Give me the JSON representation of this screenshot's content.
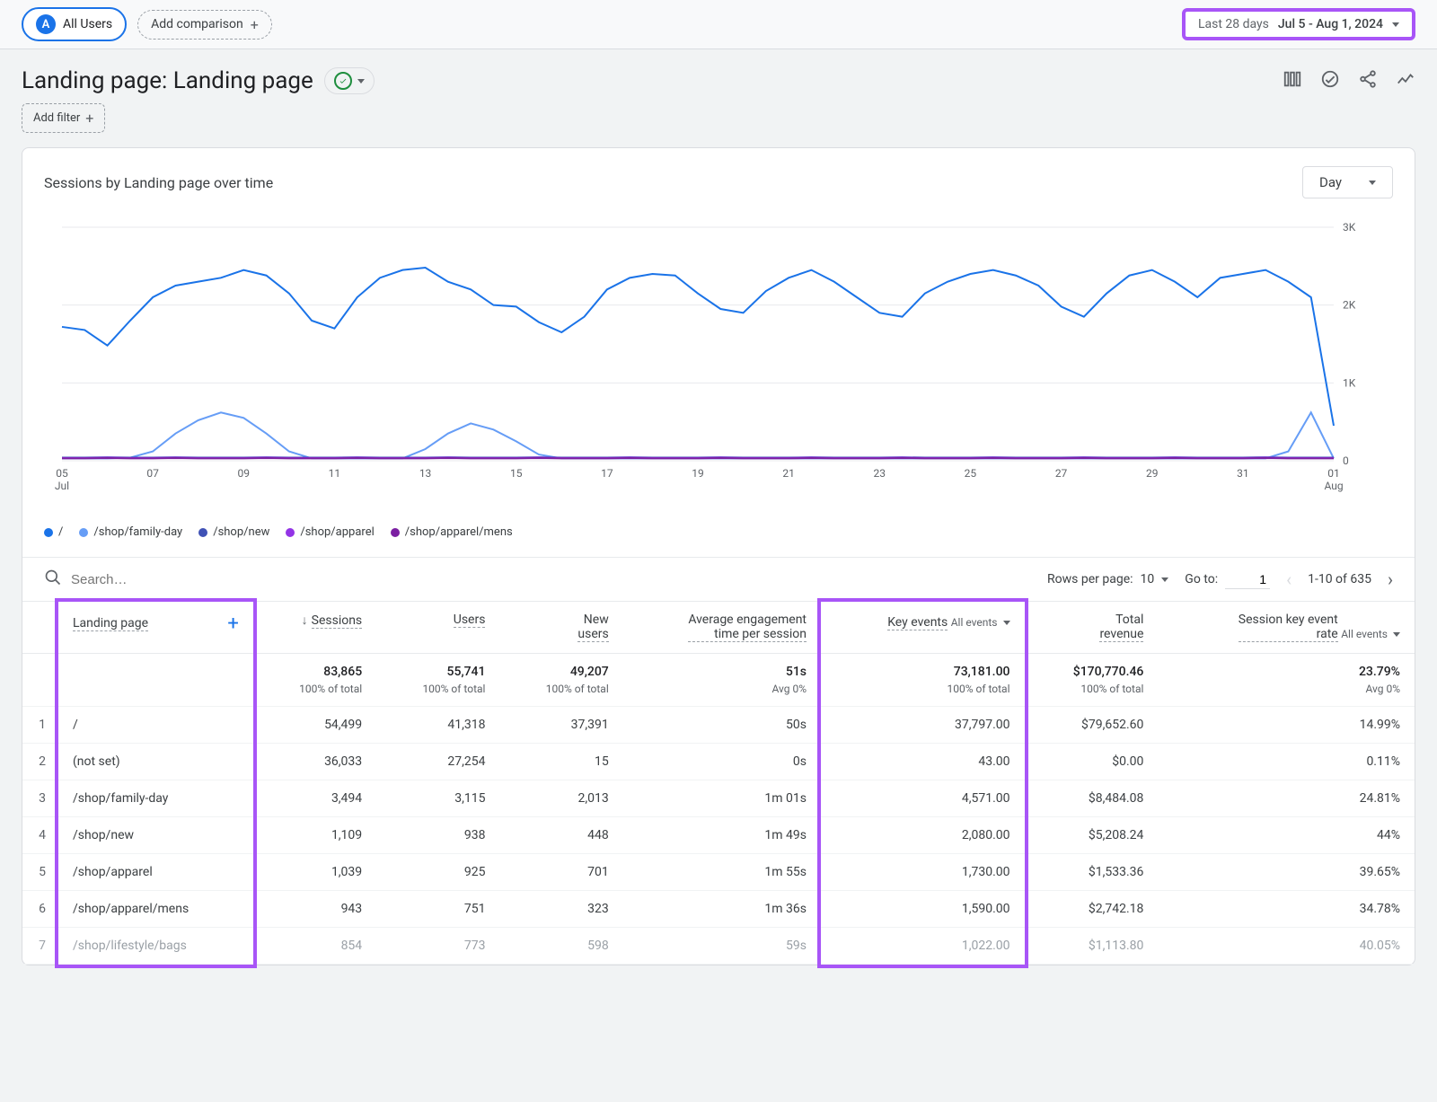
{
  "topbar": {
    "all_users_badge": "A",
    "all_users_label": "All Users",
    "add_comparison": "Add comparison"
  },
  "date_range": {
    "label": "Last 28 days",
    "value": "Jul 5 - Aug 1, 2024",
    "highlight_color": "#a855f7"
  },
  "header": {
    "title": "Landing page: Landing page",
    "add_filter": "Add filter"
  },
  "chart": {
    "title": "Sessions by Landing page over time",
    "granularity": "Day",
    "type": "line",
    "background_color": "#ffffff",
    "grid_color": "#e8eaed",
    "ylim": [
      0,
      3000
    ],
    "yticks": [
      0,
      1000,
      2000,
      3000
    ],
    "ytick_labels": [
      "0",
      "1K",
      "2K",
      "3K"
    ],
    "xtick_labels": [
      "05\nJul",
      "07",
      "09",
      "11",
      "13",
      "15",
      "17",
      "19",
      "21",
      "23",
      "25",
      "27",
      "29",
      "31",
      "01\nAug"
    ],
    "series": [
      {
        "name": "/",
        "color": "#1a73e8",
        "stroke_width": 2,
        "values": [
          1720,
          1680,
          1480,
          1800,
          2100,
          2250,
          2300,
          2350,
          2450,
          2380,
          2150,
          1800,
          1700,
          2100,
          2350,
          2450,
          2480,
          2300,
          2200,
          2000,
          1980,
          1780,
          1650,
          1850,
          2200,
          2350,
          2400,
          2380,
          2150,
          1950,
          1900,
          2180,
          2350,
          2450,
          2300,
          2100,
          1900,
          1850,
          2150,
          2300,
          2400,
          2450,
          2380,
          2250,
          1980,
          1850,
          2150,
          2380,
          2450,
          2300,
          2100,
          2350,
          2400,
          2450,
          2300,
          2100,
          450
        ]
      },
      {
        "name": "/shop/family-day",
        "color": "#669df6",
        "stroke_width": 2,
        "values": [
          30,
          30,
          30,
          40,
          120,
          350,
          520,
          620,
          550,
          350,
          120,
          30,
          30,
          30,
          30,
          30,
          150,
          350,
          480,
          400,
          250,
          80,
          30,
          30,
          30,
          30,
          30,
          30,
          30,
          30,
          30,
          30,
          30,
          30,
          30,
          30,
          30,
          30,
          30,
          30,
          30,
          30,
          30,
          30,
          30,
          30,
          30,
          30,
          30,
          30,
          30,
          30,
          30,
          30,
          120,
          620,
          30
        ]
      },
      {
        "name": "/shop/new",
        "color": "#3f51b5",
        "stroke_width": 2,
        "values": [
          40,
          40,
          45,
          40,
          40,
          45,
          40,
          40,
          40,
          45,
          40,
          40,
          40,
          45,
          40,
          40,
          40,
          45,
          40,
          40,
          40,
          45,
          40,
          40,
          40,
          45,
          40,
          40,
          40,
          45,
          40,
          40,
          40,
          45,
          40,
          40,
          40,
          45,
          40,
          40,
          40,
          45,
          40,
          40,
          40,
          45,
          40,
          40,
          40,
          45,
          40,
          40,
          40,
          45,
          40,
          40,
          40
        ]
      },
      {
        "name": "/shop/apparel",
        "color": "#9334e6",
        "stroke_width": 2,
        "values": [
          35,
          35,
          40,
          35,
          35,
          40,
          35,
          35,
          35,
          40,
          35,
          35,
          35,
          40,
          35,
          35,
          35,
          40,
          35,
          35,
          35,
          40,
          35,
          35,
          35,
          40,
          35,
          35,
          35,
          40,
          35,
          35,
          35,
          40,
          35,
          35,
          35,
          40,
          35,
          35,
          35,
          40,
          35,
          35,
          35,
          40,
          35,
          35,
          35,
          40,
          35,
          35,
          35,
          40,
          35,
          35,
          35
        ]
      },
      {
        "name": "/shop/apparel/mens",
        "color": "#7b1fa2",
        "stroke_width": 2,
        "values": [
          30,
          30,
          35,
          30,
          30,
          35,
          30,
          30,
          30,
          35,
          30,
          30,
          30,
          35,
          30,
          30,
          30,
          35,
          30,
          30,
          30,
          35,
          30,
          30,
          30,
          35,
          30,
          30,
          30,
          35,
          30,
          30,
          30,
          35,
          30,
          30,
          30,
          35,
          30,
          30,
          30,
          35,
          30,
          30,
          30,
          35,
          30,
          30,
          30,
          35,
          30,
          30,
          30,
          35,
          30,
          30,
          30
        ]
      }
    ]
  },
  "search": {
    "placeholder": "Search…",
    "rows_per_page_label": "Rows per page:",
    "rows_per_page_value": "10",
    "goto_label": "Go to:",
    "goto_value": "1",
    "page_info": "1-10 of 635"
  },
  "table": {
    "highlight_columns": [
      "lp",
      "key_events"
    ],
    "highlight_color": "#a855f7",
    "columns": {
      "lp": "Landing page",
      "sessions": "Sessions",
      "users": "Users",
      "new_users": "New users",
      "avg_eng": "Average engagement time per session",
      "key_events": "Key events",
      "revenue": "Total revenue",
      "rate": "Session key event rate",
      "all_events": "All events"
    },
    "totals": {
      "sessions": "83,865",
      "sessions_sub": "100% of total",
      "users": "55,741",
      "users_sub": "100% of total",
      "new_users": "49,207",
      "new_users_sub": "100% of total",
      "avg_eng": "51s",
      "avg_eng_sub": "Avg 0%",
      "key_events": "73,181.00",
      "key_events_sub": "100% of total",
      "revenue": "$170,770.46",
      "revenue_sub": "100% of total",
      "rate": "23.79%",
      "rate_sub": "Avg 0%"
    },
    "rows": [
      {
        "n": "1",
        "lp": "/",
        "sessions": "54,499",
        "users": "41,318",
        "new_users": "37,391",
        "avg_eng": "50s",
        "key_events": "37,797.00",
        "revenue": "$79,652.60",
        "rate": "14.99%"
      },
      {
        "n": "2",
        "lp": "(not set)",
        "sessions": "36,033",
        "users": "27,254",
        "new_users": "15",
        "avg_eng": "0s",
        "key_events": "43.00",
        "revenue": "$0.00",
        "rate": "0.11%"
      },
      {
        "n": "3",
        "lp": "/shop/family-day",
        "sessions": "3,494",
        "users": "3,115",
        "new_users": "2,013",
        "avg_eng": "1m 01s",
        "key_events": "4,571.00",
        "revenue": "$8,484.08",
        "rate": "24.81%"
      },
      {
        "n": "4",
        "lp": "/shop/new",
        "sessions": "1,109",
        "users": "938",
        "new_users": "448",
        "avg_eng": "1m 49s",
        "key_events": "2,080.00",
        "revenue": "$5,208.24",
        "rate": "44%"
      },
      {
        "n": "5",
        "lp": "/shop/apparel",
        "sessions": "1,039",
        "users": "925",
        "new_users": "701",
        "avg_eng": "1m 55s",
        "key_events": "1,730.00",
        "revenue": "$1,533.36",
        "rate": "39.65%"
      },
      {
        "n": "6",
        "lp": "/shop/apparel/mens",
        "sessions": "943",
        "users": "751",
        "new_users": "323",
        "avg_eng": "1m 36s",
        "key_events": "1,590.00",
        "revenue": "$2,742.18",
        "rate": "34.78%"
      },
      {
        "n": "7",
        "lp": "/shop/lifestyle/bags",
        "sessions": "854",
        "users": "773",
        "new_users": "598",
        "avg_eng": "59s",
        "key_events": "1,022.00",
        "revenue": "$1,113.80",
        "rate": "40.05%",
        "faded": true
      }
    ]
  }
}
